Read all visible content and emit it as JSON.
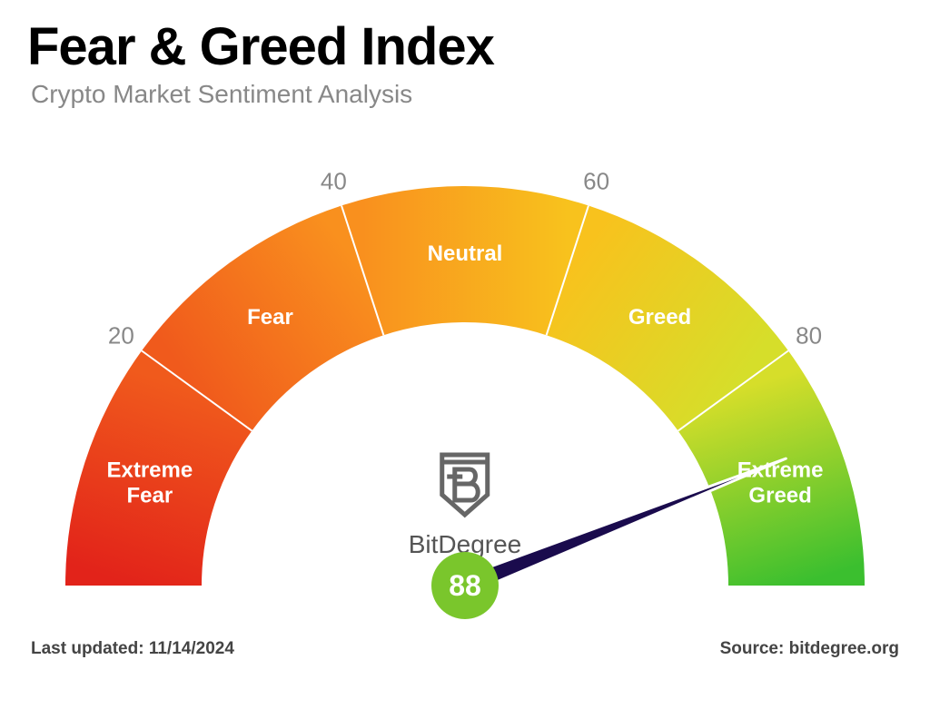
{
  "title": "Fear & Greed Index",
  "subtitle": "Crypto Market Sentiment Analysis",
  "gauge": {
    "value": 88,
    "min": 0,
    "max": 100,
    "outer_radius": 440,
    "inner_radius": 290,
    "ticks": [
      {
        "value": 20,
        "label": "20"
      },
      {
        "value": 40,
        "label": "40"
      },
      {
        "value": 60,
        "label": "60"
      },
      {
        "value": 80,
        "label": "80"
      }
    ],
    "segments": [
      {
        "from": 0,
        "to": 20,
        "label": "Extreme\nFear",
        "color_start": "#e2231a",
        "color_end": "#f05a1c"
      },
      {
        "from": 20,
        "to": 40,
        "label": "Fear",
        "color_start": "#f05a1c",
        "color_end": "#f9901e"
      },
      {
        "from": 40,
        "to": 60,
        "label": "Neutral",
        "color_start": "#f9901e",
        "color_end": "#f8c21d"
      },
      {
        "from": 60,
        "to": 80,
        "label": "Greed",
        "color_start": "#f8c21d",
        "color_end": "#d6de2a"
      },
      {
        "from": 80,
        "to": 100,
        "label": "Extreme\nGreed",
        "color_start": "#d6de2a",
        "color_end": "#3bbf2f"
      }
    ],
    "needle_color": "#1a0b4d",
    "needle_outline": "#ffffff",
    "value_circle_bg": "#7ac62c",
    "tick_color": "#888888",
    "seg_label_color": "#ffffff",
    "divider_color": "#ffffff"
  },
  "brand": {
    "name": "BitDegree",
    "logo_stroke": "#666666"
  },
  "footer": {
    "updated_label": "Last updated: ",
    "updated_date": "11/14/2024",
    "source_label": "Source: ",
    "source_value": "bitdegree.org"
  }
}
